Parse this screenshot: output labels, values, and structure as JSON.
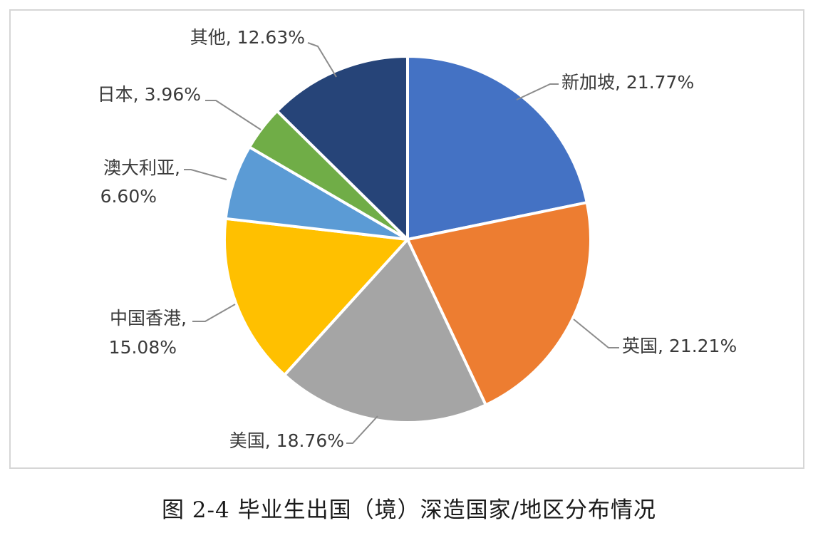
{
  "chart_data": {
    "type": "pie",
    "title": "",
    "slices": [
      {
        "name": "新加坡",
        "value": 21.77,
        "label": "新加坡, 21.77%",
        "color": "#4472C4"
      },
      {
        "name": "英国",
        "value": 21.21,
        "label": "英国, 21.21%",
        "color": "#ED7D31"
      },
      {
        "name": "美国",
        "value": 18.76,
        "label": "美国, 18.76%",
        "color": "#A5A5A5"
      },
      {
        "name": "中国香港",
        "value": 15.08,
        "label": "中国香港, 15.08%",
        "color": "#FFC000"
      },
      {
        "name": "澳大利亚",
        "value": 6.6,
        "label": "澳大利亚, 6.60%",
        "color": "#5B9BD5"
      },
      {
        "name": "日本",
        "value": 3.96,
        "label": "日本, 3.96%",
        "color": "#70AD47"
      },
      {
        "name": "其他",
        "value": 12.63,
        "label": "其他, 12.63%",
        "color": "#264478"
      }
    ],
    "start_angle_deg": 0,
    "direction": "clockwise",
    "label_style": "outside-with-leader-lines"
  },
  "caption": "图 2-4  毕业生出国（境）深造国家/地区分布情况"
}
